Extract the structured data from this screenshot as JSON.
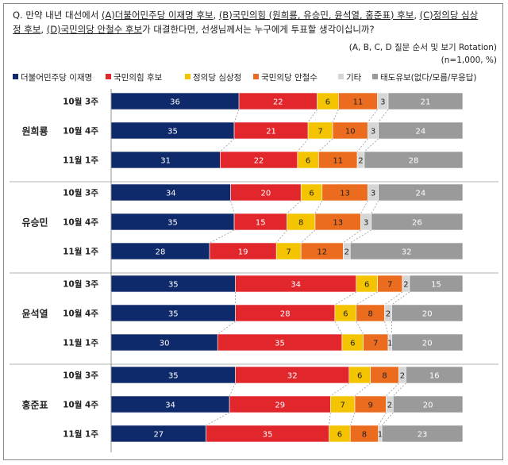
{
  "question": {
    "prefix": "Q. 만약 내년 대선에서 ",
    "a": "(A)더불어민주당 이재명 후보",
    "sep1": ", ",
    "b": "(B)국민의힘 (원희룡, 유승민, 윤석열, 홍준표) 후보",
    "sep2": ", ",
    "c1": "(C)정의당 심상",
    "c2": "정 후보",
    "sep3": ", ",
    "d": "(D)국민의당 안철수 후보",
    "suffix": "가 대결한다면, 선생님께서는 누구에게 투표할 생각이십니까?"
  },
  "note_rotation": "(A, B, C, D 질문 순서 및 보기 Rotation)",
  "note_sample": "(n=1,000, %)",
  "colors": {
    "lee": "#0f2a6b",
    "ppp": "#e1262c",
    "justice": "#f5c400",
    "people": "#eb6b1f",
    "etc": "#d6d6d6",
    "undecided": "#9a9a9a"
  },
  "chart_data": {
    "type": "bar",
    "orientation": "horizontal",
    "stacked": true,
    "percent": true,
    "legend_position": "top",
    "series": [
      {
        "name": "더불어민주당 이재명",
        "color": "#0f2a6b"
      },
      {
        "name": "국민의힘 후보",
        "color": "#e1262c"
      },
      {
        "name": "정의당 심상정",
        "color": "#f5c400"
      },
      {
        "name": "국민의당 안철수",
        "color": "#eb6b1f"
      },
      {
        "name": "기타",
        "color": "#d6d6d6"
      },
      {
        "name": "태도유보(없다/모름/무응답)",
        "color": "#9a9a9a"
      }
    ],
    "groups": [
      {
        "name": "원희룡",
        "rows": [
          {
            "label": "10월 3주",
            "values": [
              36,
              22,
              6,
              11,
              3,
              21
            ]
          },
          {
            "label": "10월 4주",
            "values": [
              35,
              21,
              7,
              10,
              3,
              24
            ]
          },
          {
            "label": "11월 1주",
            "values": [
              31,
              22,
              6,
              11,
              2,
              28
            ]
          }
        ]
      },
      {
        "name": "유승민",
        "rows": [
          {
            "label": "10월 3주",
            "values": [
              34,
              20,
              6,
              13,
              3,
              24
            ]
          },
          {
            "label": "10월 4주",
            "values": [
              35,
              15,
              8,
              13,
              3,
              26
            ]
          },
          {
            "label": "11월 1주",
            "values": [
              28,
              19,
              7,
              12,
              2,
              32
            ]
          }
        ]
      },
      {
        "name": "윤석열",
        "rows": [
          {
            "label": "10월 3주",
            "values": [
              35,
              34,
              6,
              7,
              2,
              15
            ]
          },
          {
            "label": "10월 4주",
            "values": [
              35,
              28,
              6,
              8,
              2,
              20
            ]
          },
          {
            "label": "11월 1주",
            "values": [
              30,
              35,
              6,
              7,
              1,
              20
            ]
          }
        ]
      },
      {
        "name": "홍준표",
        "rows": [
          {
            "label": "10월 3주",
            "values": [
              35,
              32,
              6,
              8,
              2,
              16
            ]
          },
          {
            "label": "10월 4주",
            "values": [
              34,
              29,
              7,
              9,
              2,
              20
            ]
          },
          {
            "label": "11월 1주",
            "values": [
              27,
              35,
              6,
              8,
              1,
              23
            ]
          }
        ]
      }
    ]
  }
}
